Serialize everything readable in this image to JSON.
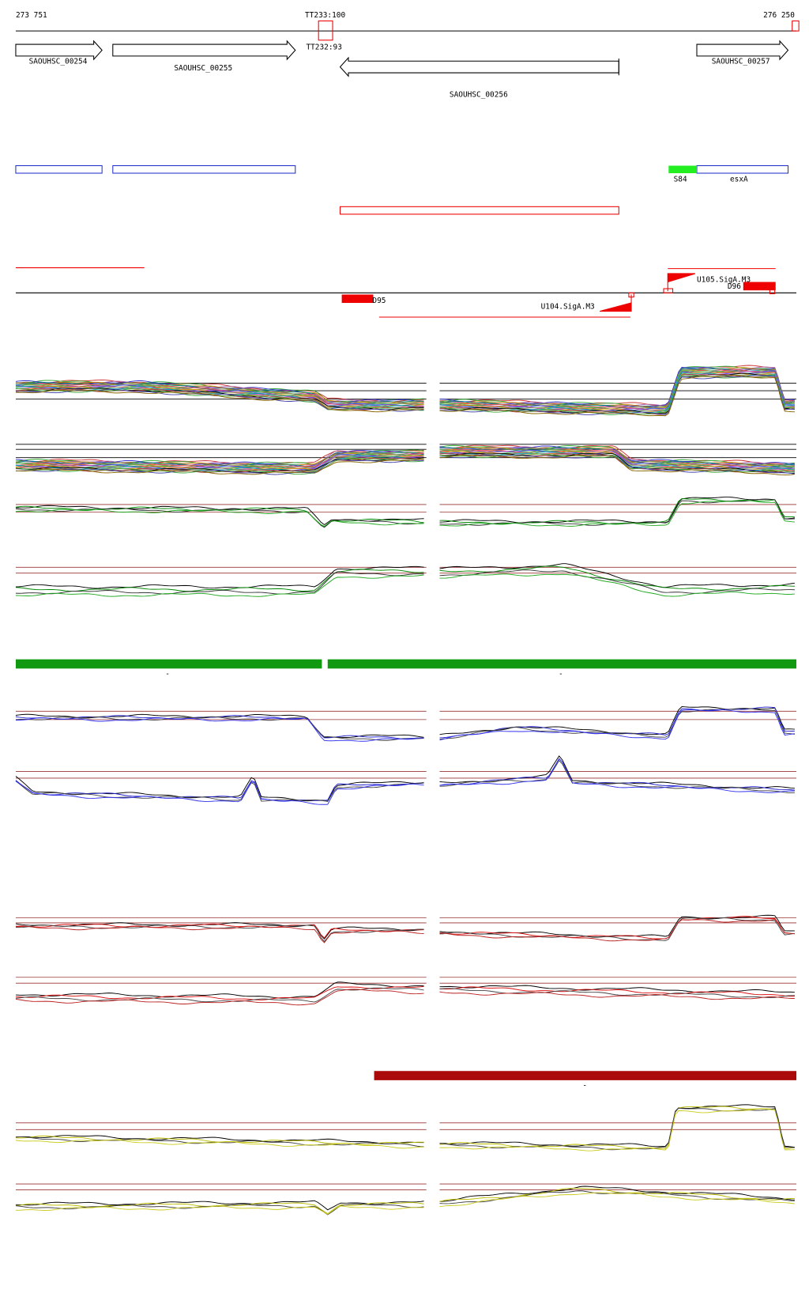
{
  "ruler": {
    "start_label": "273 751",
    "end_label": "276 250"
  },
  "terminators": [
    {
      "label": "TT233:100"
    },
    {
      "label": "TT232:93"
    }
  ],
  "genes": [
    {
      "label": "SAOUHSC_00254"
    },
    {
      "label": "SAOUHSC_00255"
    },
    {
      "label": "SAOUHSC_00256"
    },
    {
      "label": "SAOUHSC_00257"
    }
  ],
  "annotations": [
    {
      "label": "S84"
    },
    {
      "label": "esxA"
    }
  ],
  "regulatory": [
    {
      "label": "D95"
    },
    {
      "label": "U105.SigA.M3"
    },
    {
      "label": "D96"
    },
    {
      "label": "U104.SigA.M3"
    }
  ],
  "track_labels": [
    "-",
    "-",
    "-"
  ]
}
